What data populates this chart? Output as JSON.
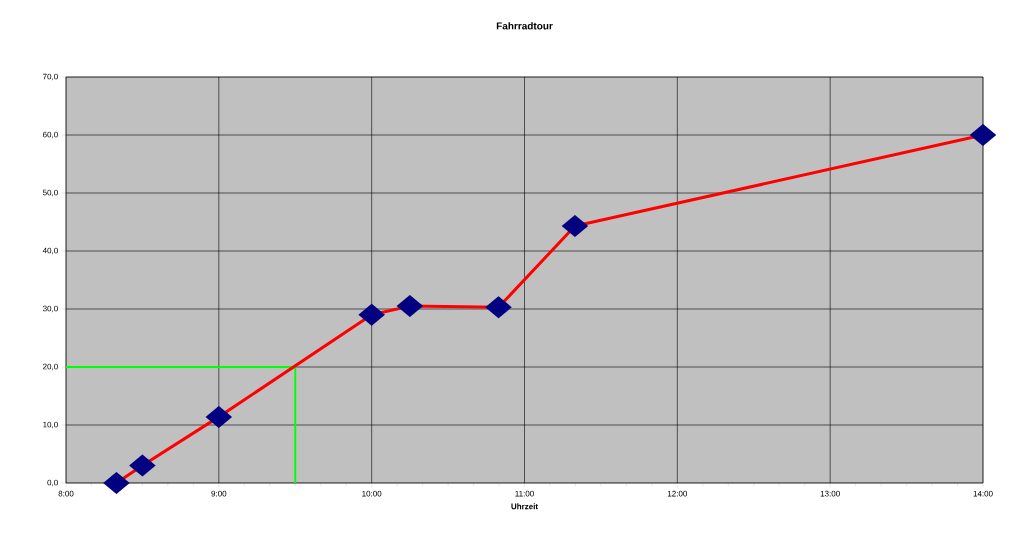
{
  "chart_data": {
    "type": "line",
    "title": "Fahrradtour",
    "xlabel": "Uhrzeit",
    "x": [
      8.33,
      8.5,
      9.0,
      10.0,
      10.25,
      10.83,
      11.33,
      14.0
    ],
    "series": [
      {
        "color": "#ff0000",
        "values": [
          0,
          3,
          11.4,
          29.0,
          30.5,
          30.3,
          44.3,
          60.0
        ]
      }
    ],
    "marker": "diamond",
    "grid": true,
    "xlim": [
      8,
      14
    ],
    "ylim": [
      0,
      70
    ],
    "xticks": [
      {
        "value": 8,
        "label": "8:00"
      },
      {
        "value": 9,
        "label": "9:00"
      },
      {
        "value": 10,
        "label": "10:00"
      },
      {
        "value": 11,
        "label": "11:00"
      },
      {
        "value": 12,
        "label": "12:00"
      },
      {
        "value": 13,
        "label": "13:00"
      },
      {
        "value": 14,
        "label": "14:00"
      }
    ],
    "yticks": [
      {
        "value": 0,
        "label": "0,0"
      },
      {
        "value": 10,
        "label": "10,0"
      },
      {
        "value": 20,
        "label": "20,0"
      },
      {
        "value": 30,
        "label": "30,0"
      },
      {
        "value": 40,
        "label": "40,0"
      },
      {
        "value": 50,
        "label": "50,0"
      },
      {
        "value": 60,
        "label": "60,0"
      },
      {
        "value": 70,
        "label": "70,0"
      }
    ],
    "ref_lines": [
      {
        "axis": "y",
        "value": 20,
        "color": "#00ff00"
      },
      {
        "axis": "x",
        "value": 9.5,
        "color": "#00ff00"
      }
    ]
  }
}
